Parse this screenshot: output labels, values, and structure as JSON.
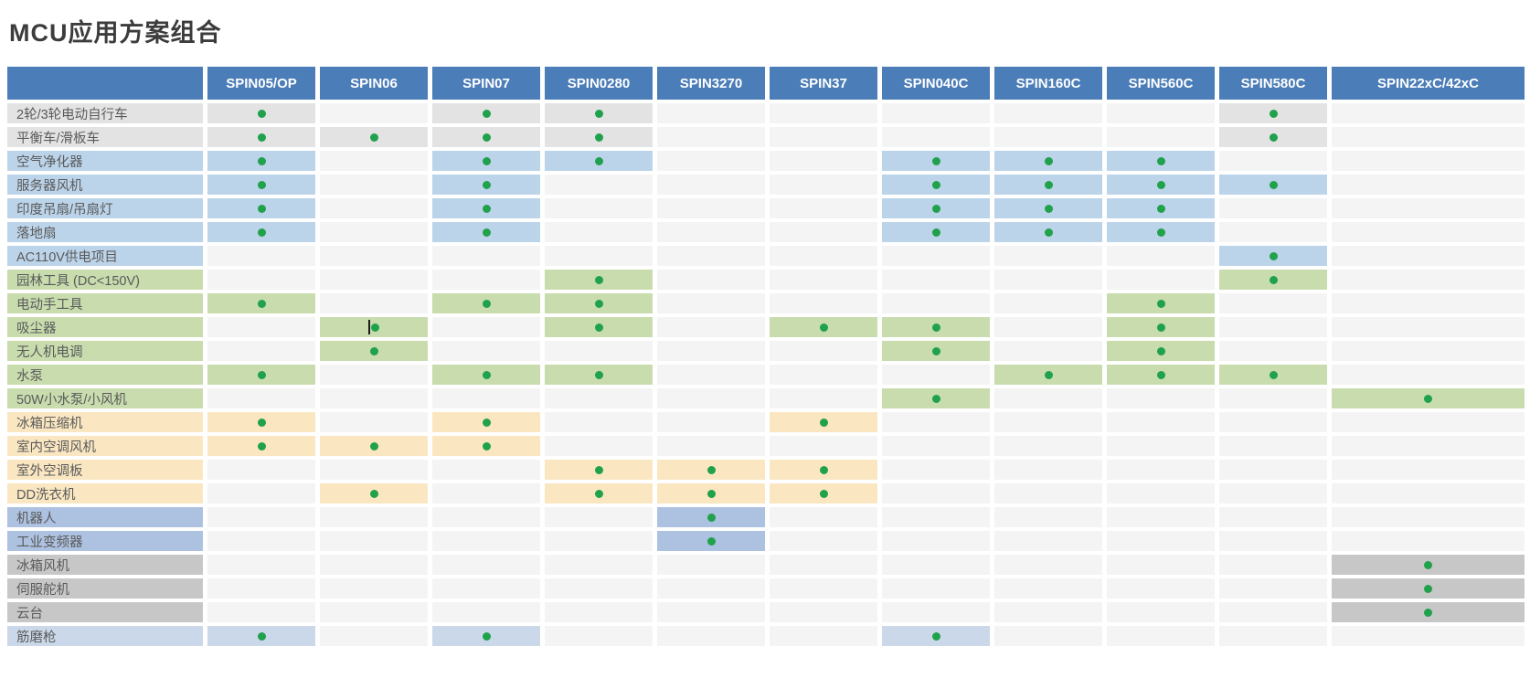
{
  "page_title": "MCU应用方案组合",
  "colors": {
    "header_bg": "#4b7db8",
    "header_text": "#ffffff",
    "cell_default": "#f4f4f4",
    "dot": "#20a14c",
    "title_text": "#3c3c3c",
    "label_text": "#5a5a5a",
    "groups": {
      "gray_light": "#e3e3e3",
      "blue": "#bcd4ea",
      "green": "#c8dcae",
      "yellow": "#fae7c2",
      "periwinkle": "#adc1e0",
      "gray": "#c7c7c7",
      "blue_gray": "#cbd8e9"
    }
  },
  "chart_data": {
    "type": "table",
    "title": "MCU应用方案组合",
    "corner_header": "",
    "columns": [
      "SPIN05/OP",
      "SPIN06",
      "SPIN07",
      "SPIN0280",
      "SPIN3270",
      "SPIN37",
      "SPIN040C",
      "SPIN160C",
      "SPIN560C",
      "SPIN580C",
      "SPIN22xC/42xC"
    ],
    "marker": "green-dot",
    "rows": [
      {
        "label": "2轮/3轮电动自行车",
        "group": "gray_light",
        "supported": [
          "SPIN05/OP",
          "SPIN07",
          "SPIN0280",
          "SPIN580C"
        ]
      },
      {
        "label": "平衡车/滑板车",
        "group": "gray_light",
        "supported": [
          "SPIN05/OP",
          "SPIN06",
          "SPIN07",
          "SPIN0280",
          "SPIN580C"
        ]
      },
      {
        "label": "空气净化器",
        "group": "blue",
        "supported": [
          "SPIN05/OP",
          "SPIN07",
          "SPIN0280",
          "SPIN040C",
          "SPIN160C",
          "SPIN560C"
        ]
      },
      {
        "label": "服务器风机",
        "group": "blue",
        "supported": [
          "SPIN05/OP",
          "SPIN07",
          "SPIN040C",
          "SPIN160C",
          "SPIN560C",
          "SPIN580C"
        ]
      },
      {
        "label": "印度吊扇/吊扇灯",
        "group": "blue",
        "supported": [
          "SPIN05/OP",
          "SPIN07",
          "SPIN040C",
          "SPIN160C",
          "SPIN560C"
        ]
      },
      {
        "label": "落地扇",
        "group": "blue",
        "supported": [
          "SPIN05/OP",
          "SPIN07",
          "SPIN040C",
          "SPIN160C",
          "SPIN560C"
        ]
      },
      {
        "label": "AC110V供电项目",
        "group": "blue",
        "supported": [
          "SPIN580C"
        ]
      },
      {
        "label": "园林工具 (DC<150V)",
        "group": "green",
        "supported": [
          "SPIN0280",
          "SPIN580C"
        ]
      },
      {
        "label": "电动手工具",
        "group": "green",
        "supported": [
          "SPIN05/OP",
          "SPIN07",
          "SPIN0280",
          "SPIN560C"
        ]
      },
      {
        "label": "吸尘器",
        "group": "green",
        "supported": [
          "SPIN06",
          "SPIN0280",
          "SPIN37",
          "SPIN040C",
          "SPIN560C"
        ],
        "text_cursor_at": "SPIN06"
      },
      {
        "label": "无人机电调",
        "group": "green",
        "supported": [
          "SPIN06",
          "SPIN040C",
          "SPIN560C"
        ]
      },
      {
        "label": "水泵",
        "group": "green",
        "supported": [
          "SPIN05/OP",
          "SPIN07",
          "SPIN0280",
          "SPIN160C",
          "SPIN560C",
          "SPIN580C"
        ]
      },
      {
        "label": "50W小水泵/小风机",
        "group": "green",
        "supported": [
          "SPIN040C",
          "SPIN22xC/42xC"
        ]
      },
      {
        "label": "冰箱压缩机",
        "group": "yellow",
        "supported": [
          "SPIN05/OP",
          "SPIN07",
          "SPIN37"
        ]
      },
      {
        "label": "室内空调风机",
        "group": "yellow",
        "supported": [
          "SPIN05/OP",
          "SPIN06",
          "SPIN07"
        ]
      },
      {
        "label": "室外空调板",
        "group": "yellow",
        "supported": [
          "SPIN0280",
          "SPIN3270",
          "SPIN37"
        ]
      },
      {
        "label": "DD洗衣机",
        "group": "yellow",
        "supported": [
          "SPIN06",
          "SPIN0280",
          "SPIN3270",
          "SPIN37"
        ]
      },
      {
        "label": "机器人",
        "group": "periwinkle",
        "supported": [
          "SPIN3270"
        ]
      },
      {
        "label": "工业变频器",
        "group": "periwinkle",
        "supported": [
          "SPIN3270"
        ]
      },
      {
        "label": "冰箱风机",
        "group": "gray",
        "supported": [
          "SPIN22xC/42xC"
        ]
      },
      {
        "label": "伺服舵机",
        "group": "gray",
        "supported": [
          "SPIN22xC/42xC"
        ]
      },
      {
        "label": "云台",
        "group": "gray",
        "supported": [
          "SPIN22xC/42xC"
        ]
      },
      {
        "label": "筋磨枪",
        "group": "blue_gray",
        "supported": [
          "SPIN05/OP",
          "SPIN07",
          "SPIN040C"
        ]
      }
    ]
  }
}
